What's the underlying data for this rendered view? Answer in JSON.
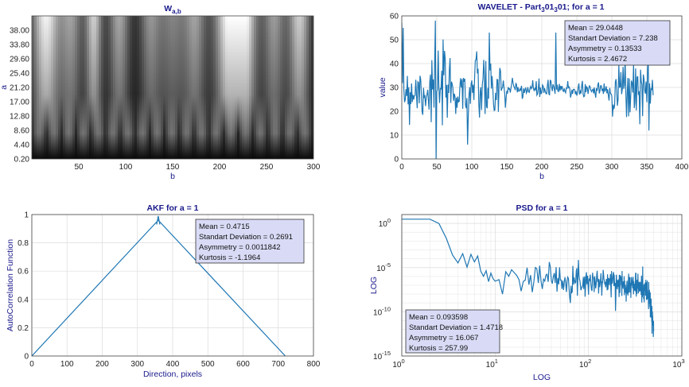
{
  "colors": {
    "series": "#1f77b4",
    "title": "#1a1a8c",
    "statsbox": "#d9dbf6"
  },
  "chart_data": [
    {
      "type": "heatmap",
      "title_main": "W",
      "title_sub": "a,b",
      "xlabel": "b",
      "ylabel": "a",
      "xlim": [
        0,
        300
      ],
      "x_ticks": [
        "50",
        "100",
        "150",
        "200",
        "250",
        "300"
      ],
      "y_ticks": [
        "38.00",
        "33.80",
        "29.60",
        "25.40",
        "21.20",
        "17.00",
        "12.80",
        "8.60",
        "4.40",
        "0.20"
      ],
      "ylim": [
        0.2,
        42.2
      ],
      "colormap": "gray"
    },
    {
      "type": "line",
      "title_parts": [
        "WAVELET - Part",
        "3",
        "01",
        "3",
        "01; for a = 1"
      ],
      "xlabel": "b",
      "ylabel": "value",
      "xlim": [
        0,
        400
      ],
      "ylim": [
        0,
        60
      ],
      "x_ticks": [
        "0",
        "50",
        "100",
        "150",
        "200",
        "250",
        "300",
        "350",
        "400"
      ],
      "y_ticks": [
        "0",
        "10",
        "20",
        "30",
        "40",
        "50",
        "60"
      ],
      "grid": true,
      "stats": [
        "Mean = 29.0448",
        "Standart Deviation = 7.238",
        "Asymmetry = 0.13533",
        "Kurtosis = 2.4672"
      ],
      "mean": 29.0448,
      "std": 7.238,
      "n_points": 360,
      "highlights": [
        [
          48,
          58
        ],
        [
          49,
          0
        ],
        [
          2,
          55
        ],
        [
          94,
          6
        ],
        [
          220,
          53
        ]
      ]
    },
    {
      "type": "line",
      "title": "AKF for a = 1",
      "xlabel": "Direction, pixels",
      "ylabel": "AutoCorrelation Function",
      "xlim": [
        0,
        800
      ],
      "ylim": [
        0,
        1
      ],
      "x_ticks": [
        "0",
        "100",
        "200",
        "300",
        "400",
        "500",
        "600",
        "700",
        "800"
      ],
      "y_ticks": [
        "0",
        "0.2",
        "0.4",
        "0.6",
        "0.8",
        "1"
      ],
      "grid": true,
      "stats": [
        "Mean = 0.4715",
        "Standart Deviation = 0.2691",
        "Asymmetry = 0.0011842",
        "Kurtosis = -1.1964"
      ],
      "x": [
        0,
        359,
        720
      ],
      "y": [
        0,
        0.96,
        0
      ]
    },
    {
      "type": "line",
      "title": "PSD for a = 1",
      "xlabel": "LOG",
      "ylabel": "LOG",
      "xscale": "log",
      "yscale": "log",
      "xlim": [
        1,
        1000
      ],
      "ylim": [
        1e-15,
        10
      ],
      "x_ticks": [
        {
          "b": "10",
          "e": "0"
        },
        {
          "b": "10",
          "e": "1"
        },
        {
          "b": "10",
          "e": "2"
        },
        {
          "b": "10",
          "e": "3"
        }
      ],
      "y_ticks": [
        {
          "b": "10",
          "e": "0"
        },
        {
          "b": "10",
          "e": "-5"
        },
        {
          "b": "10",
          "e": "-10"
        },
        {
          "b": "10",
          "e": "-15"
        }
      ],
      "grid": true,
      "stats": [
        "Mean = 0.093598",
        "Standart Deviation = 1.4718",
        "Asymmetry = 16.067",
        "Kurtosis = 257.99"
      ],
      "x": [
        1,
        2,
        2.6,
        3,
        4,
        5,
        6,
        7,
        8,
        10,
        20,
        50,
        100,
        200,
        300,
        400,
        450,
        500
      ],
      "y": [
        3,
        3,
        0.8,
        0.02,
        0.0002,
        3e-05,
        1e-05,
        5e-06,
        3e-06,
        2e-06,
        1e-06,
        5e-07,
        3e-07,
        2e-07,
        1e-07,
        5e-08,
        3e-09,
        8e-13
      ]
    }
  ]
}
